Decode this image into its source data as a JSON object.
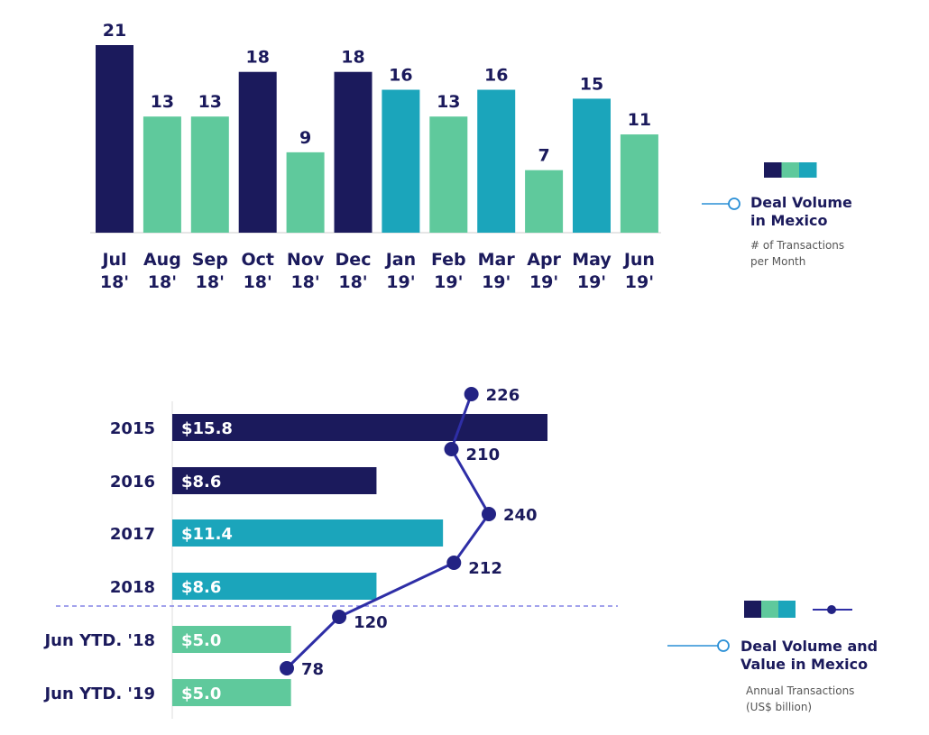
{
  "colors": {
    "navy": "#1b1a5c",
    "green": "#5fc99c",
    "teal": "#1ba5bb",
    "line": "#2e2ea6",
    "marker": "#232384",
    "legend_line": "#2a8fd6",
    "divider": "#6a6ae0",
    "axis": "#dddddd"
  },
  "chart_data": [
    {
      "type": "bar",
      "title": "Deal Volume in Mexico",
      "subtitle": "# of Transactions per Month",
      "categories": [
        "Jul 18'",
        "Aug 18'",
        "Sep 18'",
        "Oct 18'",
        "Nov 18'",
        "Dec 18'",
        "Jan 19'",
        "Feb 19'",
        "Mar 19'",
        "Apr 19'",
        "May 19'",
        "Jun 19'"
      ],
      "category_lines": [
        [
          "Jul",
          "18'"
        ],
        [
          "Aug",
          "18'"
        ],
        [
          "Sep",
          "18'"
        ],
        [
          "Oct",
          "18'"
        ],
        [
          "Nov",
          "18'"
        ],
        [
          "Dec",
          "18'"
        ],
        [
          "Jan",
          "19'"
        ],
        [
          "Feb",
          "19'"
        ],
        [
          "Mar",
          "19'"
        ],
        [
          "Apr",
          "19'"
        ],
        [
          "May",
          "19'"
        ],
        [
          "Jun",
          "19'"
        ]
      ],
      "values": [
        21,
        13,
        13,
        18,
        9,
        18,
        16,
        13,
        16,
        7,
        15,
        11
      ],
      "bar_colors": [
        "navy",
        "green",
        "green",
        "navy",
        "green",
        "navy",
        "teal",
        "green",
        "teal",
        "green",
        "teal",
        "green"
      ],
      "xlabel": "",
      "ylabel": "",
      "ylim": [
        0,
        21
      ],
      "grid": false,
      "legend": {
        "placement": "right",
        "swatches": [
          "navy",
          "green",
          "teal"
        ],
        "title_lines": [
          "Deal Volume",
          "in Mexico"
        ],
        "sub_lines": [
          "# of Transactions",
          "per Month"
        ]
      }
    },
    {
      "type": "bar",
      "orientation": "horizontal",
      "title": "Deal Volume and Value in Mexico",
      "subtitle": "Annual Transactions (US$ billion)",
      "categories": [
        "2015",
        "2016",
        "2017",
        "2018",
        "Jun YTD. '18",
        "Jun YTD. '19"
      ],
      "series": [
        {
          "name": "Value (US$ billion)",
          "kind": "bar",
          "values": [
            15.8,
            8.6,
            11.4,
            8.6,
            5.0,
            5.0
          ],
          "labels": [
            "$15.8",
            "$8.6",
            "$11.4",
            "$8.6",
            "$5.0",
            "$5.0"
          ],
          "bar_colors": [
            "navy",
            "navy",
            "teal",
            "teal",
            "green",
            "green"
          ]
        },
        {
          "name": "Annual Transactions",
          "kind": "line",
          "values": [
            226,
            210,
            240,
            212,
            120,
            78
          ],
          "labels": [
            "226",
            "210",
            "240",
            "212",
            "120",
            "78"
          ]
        }
      ],
      "xlim": [
        0,
        15.8
      ],
      "grid": false,
      "divider_after_category": "2018",
      "legend": {
        "placement": "bottom-right",
        "swatches": [
          "navy",
          "green",
          "teal"
        ],
        "title_lines": [
          "Deal Volume and",
          "Value in Mexico"
        ],
        "sub_lines": [
          "Annual Transactions",
          "(US$ billion)"
        ]
      }
    }
  ]
}
